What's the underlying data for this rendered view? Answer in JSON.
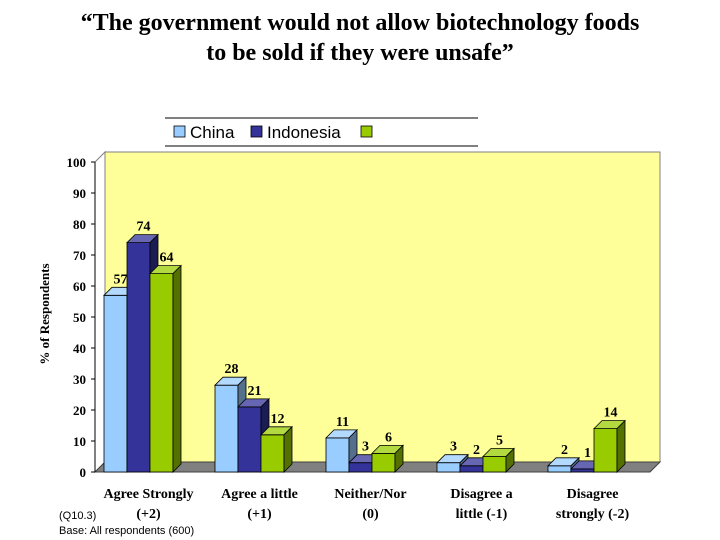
{
  "title_lines": [
    "“The government would not allow biotechnology foods",
    "to be sold if they were unsafe”"
  ],
  "chart_data": {
    "type": "bar",
    "title": "“The government would not allow biotechnology foods to be sold if they were unsafe”",
    "ylabel": "% of Respondents",
    "xlabel": "",
    "ylim": [
      0,
      100
    ],
    "yticks": [
      0,
      10,
      20,
      30,
      40,
      50,
      60,
      70,
      80,
      90,
      100
    ],
    "grid": false,
    "legend_position": "top",
    "categories": [
      [
        "Agree Strongly",
        "(+2)"
      ],
      [
        "Agree a little",
        "(+1)"
      ],
      [
        "Neither/Nor",
        "(0)"
      ],
      [
        "Disagree a",
        "little (-1)"
      ],
      [
        "Disagree",
        "strongly (-2)"
      ]
    ],
    "series": [
      {
        "name": "China",
        "color": "#99CCFF",
        "values": [
          57,
          28,
          11,
          3,
          2
        ]
      },
      {
        "name": "Indonesia",
        "color": "#333399",
        "values": [
          74,
          21,
          3,
          2,
          1
        ]
      },
      {
        "name": "",
        "color": "#99CC00",
        "values": [
          64,
          12,
          6,
          5,
          14
        ]
      }
    ],
    "plot_background": "#FFFF99"
  },
  "footnote": {
    "question": "(Q10.3)",
    "base": "Base: All respondents (600)"
  }
}
